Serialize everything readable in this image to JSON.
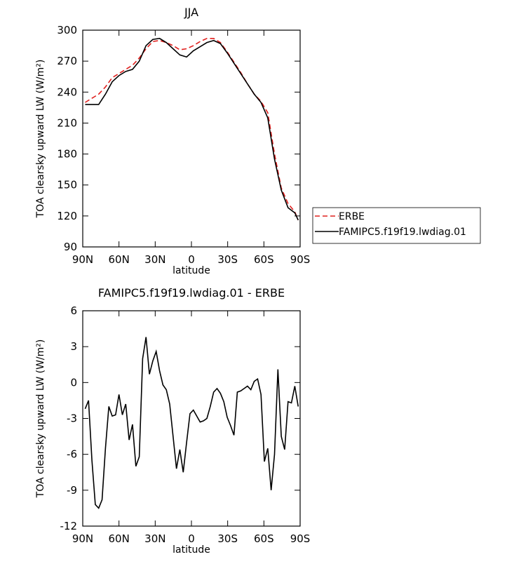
{
  "chart_data": [
    {
      "type": "line",
      "title": "JJA",
      "x_label": "latitude",
      "y_label": "TOA clearsky upward LW (W/m²)",
      "xlim": [
        90,
        -90
      ],
      "ylim": [
        90,
        300
      ],
      "xticks": [
        {
          "value": 90,
          "label": "90N"
        },
        {
          "value": 60,
          "label": "60N"
        },
        {
          "value": 30,
          "label": "30N"
        },
        0,
        {
          "value": -30,
          "label": "30S"
        },
        {
          "value": -60,
          "label": "60S"
        },
        {
          "value": -90,
          "label": "90S"
        }
      ],
      "yticks": [
        90,
        120,
        150,
        180,
        210,
        240,
        270,
        300
      ],
      "legend": "right",
      "x": [
        88,
        82.4,
        76.8,
        71.2,
        65.6,
        60,
        54.4,
        48.8,
        43.2,
        37.6,
        32,
        26.4,
        20.8,
        15.2,
        9.6,
        4,
        -1.6,
        -7.2,
        -12.8,
        -18.4,
        -24,
        -29.6,
        -35.2,
        -40.8,
        -46.4,
        -52,
        -57.6,
        -63.2,
        -68.8,
        -74.4,
        -80,
        -85.6,
        -88.4
      ],
      "series": [
        {
          "name": "ERBE",
          "color": "#e0201e",
          "linestyle": "dashed",
          "values": [
            230,
            234,
            238,
            245,
            254,
            258,
            262,
            266,
            273,
            282,
            289,
            290,
            288,
            285,
            281,
            282,
            285,
            289,
            292,
            292,
            288,
            279,
            269,
            259,
            248,
            238,
            231,
            220,
            180,
            147,
            132,
            124,
            116
          ]
        },
        {
          "name": "FAMIPC5.f19f19.lwdiag.01",
          "color": "#000000",
          "linestyle": "solid",
          "values": [
            228,
            228,
            228,
            238,
            250,
            256,
            260,
            262,
            270,
            285,
            291,
            292,
            288,
            282,
            276,
            274,
            280,
            284,
            288,
            290,
            287,
            278,
            268,
            258,
            248,
            238,
            230,
            215,
            175,
            145,
            128,
            123,
            116
          ]
        }
      ]
    },
    {
      "type": "line",
      "title": "FAMIPC5.f19f19.lwdiag.01 - ERBE",
      "x_label": "latitude",
      "y_label": "TOA clearsky upward LW (W/m²)",
      "xlim": [
        90,
        -90
      ],
      "ylim": [
        -12,
        6
      ],
      "xticks": [
        {
          "value": 90,
          "label": "90N"
        },
        {
          "value": 60,
          "label": "60N"
        },
        {
          "value": 30,
          "label": "30N"
        },
        0,
        {
          "value": -30,
          "label": "30S"
        },
        {
          "value": -60,
          "label": "60S"
        },
        {
          "value": -90,
          "label": "90S"
        }
      ],
      "yticks": [
        -12,
        -9,
        -6,
        -3,
        0,
        3,
        6
      ],
      "x": [
        88,
        85.2,
        82.4,
        79.6,
        76.8,
        74,
        71.2,
        68.4,
        65.6,
        62.8,
        60,
        57.2,
        54.4,
        51.6,
        48.8,
        46,
        43.2,
        40.4,
        37.6,
        34.8,
        32,
        29.2,
        26.4,
        23.6,
        20.8,
        18,
        15.2,
        12.4,
        9.6,
        6.8,
        4,
        1.2,
        -1.6,
        -4.4,
        -7.2,
        -10,
        -12.8,
        -15.6,
        -18.4,
        -21.2,
        -24,
        -26.8,
        -29.6,
        -32.4,
        -35.2,
        -38,
        -40.8,
        -43.6,
        -46.4,
        -49.2,
        -52,
        -54.8,
        -57.6,
        -60.4,
        -63.2,
        -66,
        -68.8,
        -71.6,
        -74.4,
        -77.2,
        -80,
        -82.8,
        -85.6,
        -88.4
      ],
      "series": [
        {
          "color": "#000000",
          "linestyle": "solid",
          "values": [
            -2.2,
            -1.5,
            -6.5,
            -10.2,
            -10.5,
            -9.8,
            -5.5,
            -2.0,
            -2.8,
            -2.7,
            -1.0,
            -2.7,
            -1.8,
            -4.8,
            -3.5,
            -7.0,
            -6.2,
            2.0,
            3.8,
            0.7,
            1.8,
            2.6,
            1.0,
            -0.2,
            -0.6,
            -1.8,
            -4.5,
            -7.2,
            -5.6,
            -7.5,
            -5.0,
            -2.6,
            -2.3,
            -2.8,
            -3.3,
            -3.2,
            -3.0,
            -2.0,
            -0.8,
            -0.5,
            -0.9,
            -1.6,
            -2.9,
            -3.6,
            -4.4,
            -0.8,
            -0.7,
            -0.5,
            -0.3,
            -0.6,
            0.1,
            0.3,
            -1.0,
            -6.6,
            -5.5,
            -9.0,
            -6.0,
            1.1,
            -4.5,
            -5.6,
            -1.6,
            -1.7,
            -0.3,
            -2.0
          ]
        }
      ]
    }
  ]
}
